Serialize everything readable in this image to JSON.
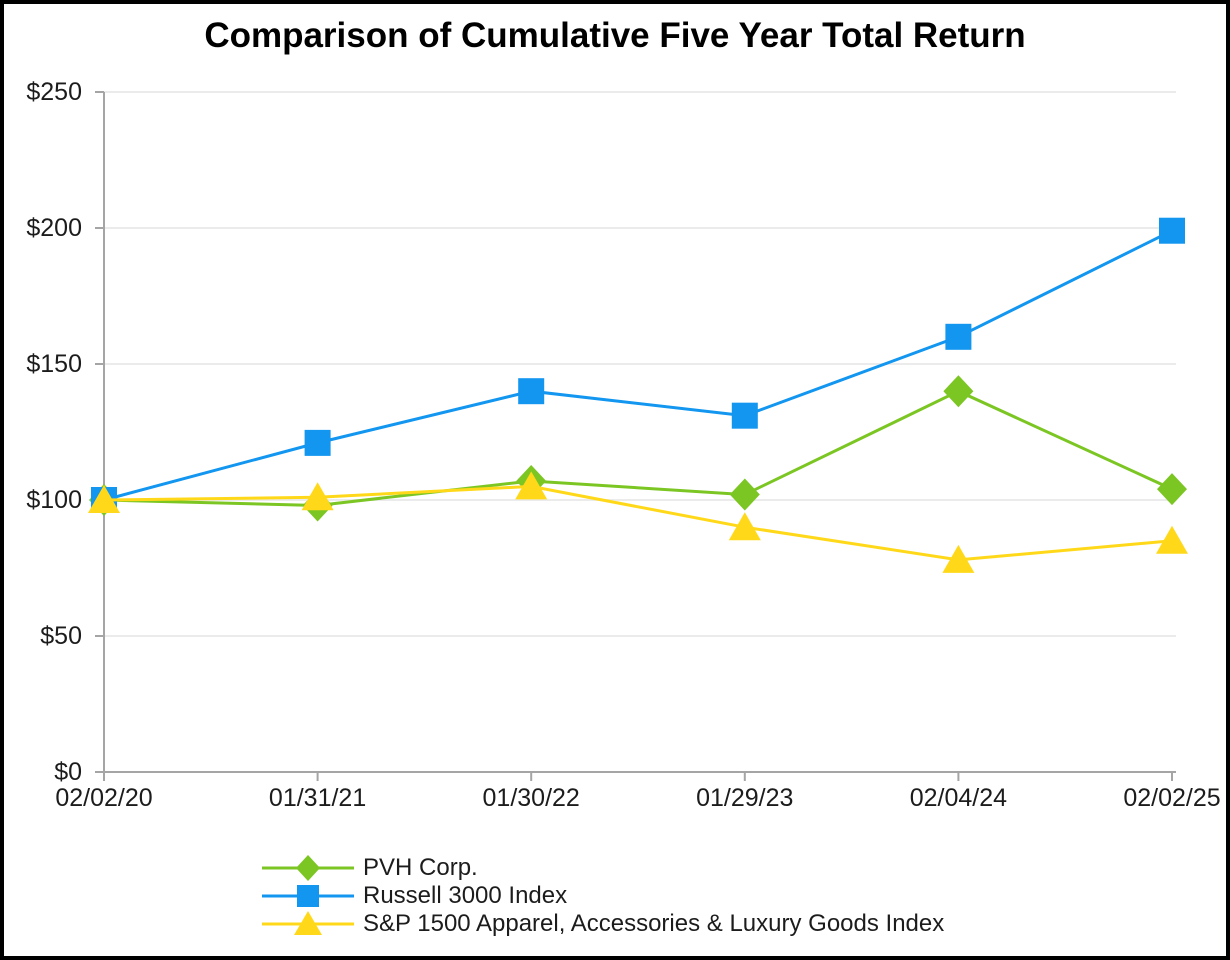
{
  "chart_data": {
    "type": "line",
    "title": "Comparison of Cumulative Five Year Total Return",
    "categories": [
      "02/02/20",
      "01/31/21",
      "01/30/22",
      "01/29/23",
      "02/04/24",
      "02/02/25"
    ],
    "series": [
      {
        "name": "PVH Corp.",
        "marker": "diamond",
        "color": "#7CC623",
        "values": [
          100,
          98,
          107,
          102,
          140,
          104
        ]
      },
      {
        "name": "Russell 3000 Index",
        "marker": "square",
        "color": "#1296F0",
        "values": [
          100,
          121,
          140,
          131,
          160,
          199
        ]
      },
      {
        "name": "S&P 1500 Apparel, Accessories & Luxury Goods Index",
        "marker": "triangle",
        "color": "#FFD919",
        "values": [
          100,
          101,
          105,
          90,
          78,
          85
        ]
      }
    ],
    "ylim": [
      0,
      250
    ],
    "y_ticks": [
      0,
      50,
      100,
      150,
      200,
      250
    ],
    "y_tick_labels": [
      "$0",
      "$50",
      "$100",
      "$150",
      "$200",
      "$250"
    ],
    "value_prefix": "$",
    "grid": true,
    "legend_position": "bottom-left",
    "axis_color": "#A5A5A5",
    "grid_color": "#EBEBEB"
  }
}
